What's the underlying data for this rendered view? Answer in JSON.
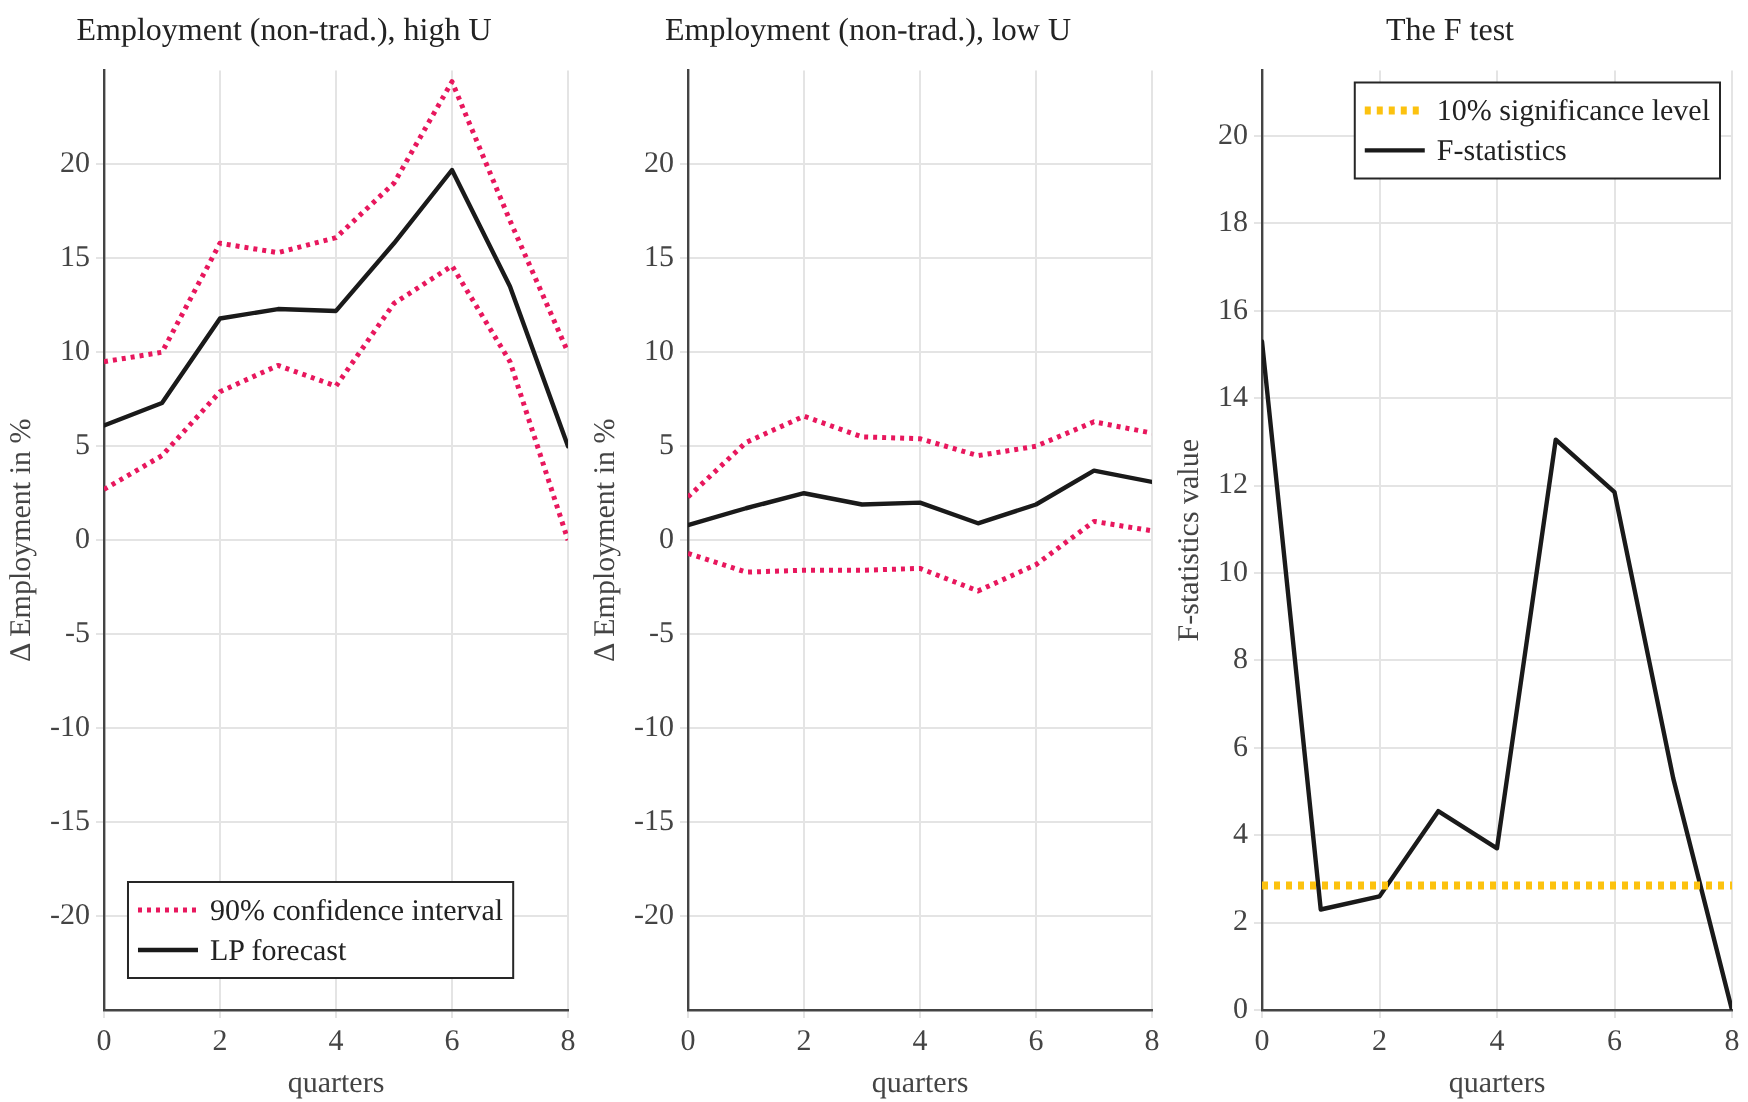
{
  "chart_data": [
    {
      "type": "line",
      "title": "Employment (non-trad.), high U",
      "xlabel": "quarters",
      "ylabel": "Δ Employment in %",
      "x": [
        0,
        1,
        2,
        3,
        4,
        5,
        6,
        7,
        8
      ],
      "xlim": [
        0,
        8
      ],
      "xticks": [
        0,
        2,
        4,
        6,
        8
      ],
      "ylim": [
        -25,
        25
      ],
      "yticks": [
        -20,
        -15,
        -10,
        -5,
        0,
        5,
        10,
        15,
        20
      ],
      "grid": true,
      "legend": "bottom left",
      "marker": "none",
      "series": [
        {
          "name": "90% confidence interval",
          "color": "#e8175d",
          "line_style": "dotted",
          "values": [
            9.5,
            10,
            15.8,
            15.3,
            16.1,
            19,
            24.4,
            17,
            10
          ]
        },
        {
          "color": "#e8175d",
          "line_style": "dotted",
          "values": [
            2.7,
            4.5,
            7.9,
            9.3,
            8.2,
            12.6,
            14.6,
            9.5,
            0
          ]
        },
        {
          "name": "LP forecast",
          "color": "#1a1a1a",
          "line_style": "solid",
          "values": [
            6.1,
            7.3,
            11.8,
            12.3,
            12.2,
            15.8,
            19.7,
            13.5,
            5
          ]
        }
      ]
    },
    {
      "type": "line",
      "title": "Employment (non-trad.), low U",
      "xlabel": "quarters",
      "ylabel": "Δ Employment in %",
      "x": [
        0,
        1,
        2,
        3,
        4,
        5,
        6,
        7,
        8
      ],
      "xlim": [
        0,
        8
      ],
      "xticks": [
        0,
        2,
        4,
        6,
        8
      ],
      "ylim": [
        -25,
        25
      ],
      "yticks": [
        -20,
        -15,
        -10,
        -5,
        0,
        5,
        10,
        15,
        20
      ],
      "grid": true,
      "marker": "none",
      "series": [
        {
          "color": "#e8175d",
          "line_style": "dotted",
          "values": [
            2.3,
            5.2,
            6.6,
            5.5,
            5.4,
            4.5,
            5,
            6.3,
            5.7
          ]
        },
        {
          "color": "#e8175d",
          "line_style": "dotted",
          "values": [
            -0.7,
            -1.7,
            -1.6,
            -1.6,
            -1.5,
            -2.7,
            -1.3,
            1.0,
            0.5
          ]
        },
        {
          "color": "#1a1a1a",
          "line_style": "solid",
          "values": [
            0.8,
            1.7,
            2.5,
            1.9,
            2.0,
            0.9,
            1.9,
            3.7,
            3.1
          ]
        }
      ]
    },
    {
      "type": "line",
      "title": "The F test",
      "xlabel": "quarters",
      "ylabel": "F-statistics value",
      "x": [
        0,
        1,
        2,
        3,
        4,
        5,
        6,
        7,
        8
      ],
      "xlim": [
        0,
        8
      ],
      "xticks": [
        0,
        2,
        4,
        6,
        8
      ],
      "ylim": [
        0,
        21.5
      ],
      "yticks": [
        0,
        2,
        4,
        6,
        8,
        10,
        12,
        14,
        16,
        18,
        20
      ],
      "grid": true,
      "legend": "top right",
      "marker": "none",
      "ref_lines": [
        {
          "axis": "y",
          "value": 2.85,
          "label": "10% significance level",
          "color": "#fcc20f",
          "line_style": "dotted"
        }
      ],
      "series": [
        {
          "name": "F-statistics",
          "color": "#1a1a1a",
          "line_style": "solid",
          "values": [
            15.3,
            2.3,
            2.6,
            4.55,
            3.7,
            13.05,
            11.85,
            5.3,
            0
          ]
        }
      ]
    }
  ]
}
